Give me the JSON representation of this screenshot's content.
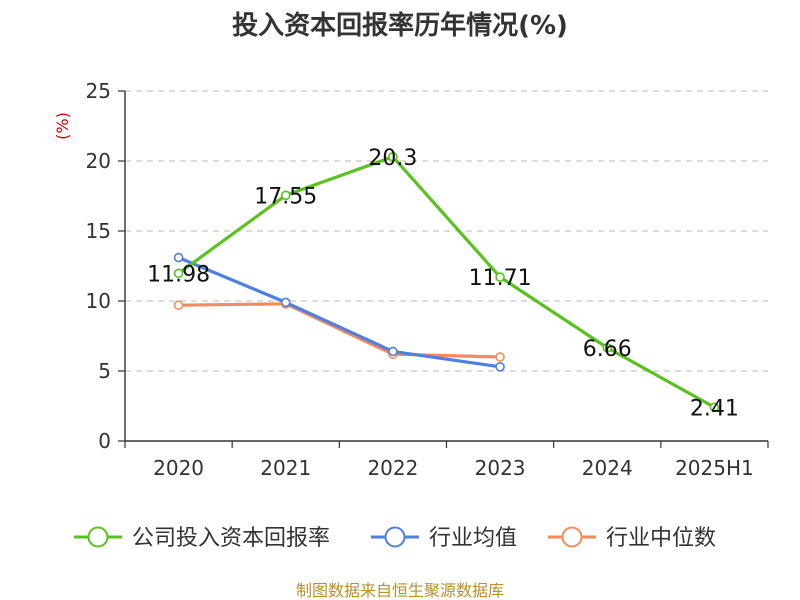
{
  "chart_data": {
    "type": "line",
    "title": "投入资本回报率历年情况(%)",
    "ylabel": "(%)",
    "categories": [
      "2020",
      "2021",
      "2022",
      "2023",
      "2024",
      "2025H1"
    ],
    "ylim": [
      0,
      25
    ],
    "yticks": [
      0,
      5,
      10,
      15,
      20,
      25
    ],
    "grid": true,
    "legend_position": "bottom",
    "series": [
      {
        "name": "公司投入资本回报率",
        "color": "#5ac21e",
        "values": [
          11.98,
          17.55,
          20.3,
          11.71,
          6.66,
          2.41
        ],
        "labels": [
          "11.98",
          "17.55",
          "20.3",
          "11.71",
          "6.66",
          "2.41"
        ]
      },
      {
        "name": "行业均值",
        "color": "#4f7fe0",
        "values": [
          13.1,
          9.9,
          6.4,
          5.3,
          null,
          null
        ]
      },
      {
        "name": "行业中位数",
        "color": "#f58b5a",
        "values": [
          9.7,
          9.8,
          6.2,
          6.0,
          null,
          null
        ]
      }
    ]
  },
  "footer": {
    "source": "制图数据来自恒生聚源数据库"
  }
}
